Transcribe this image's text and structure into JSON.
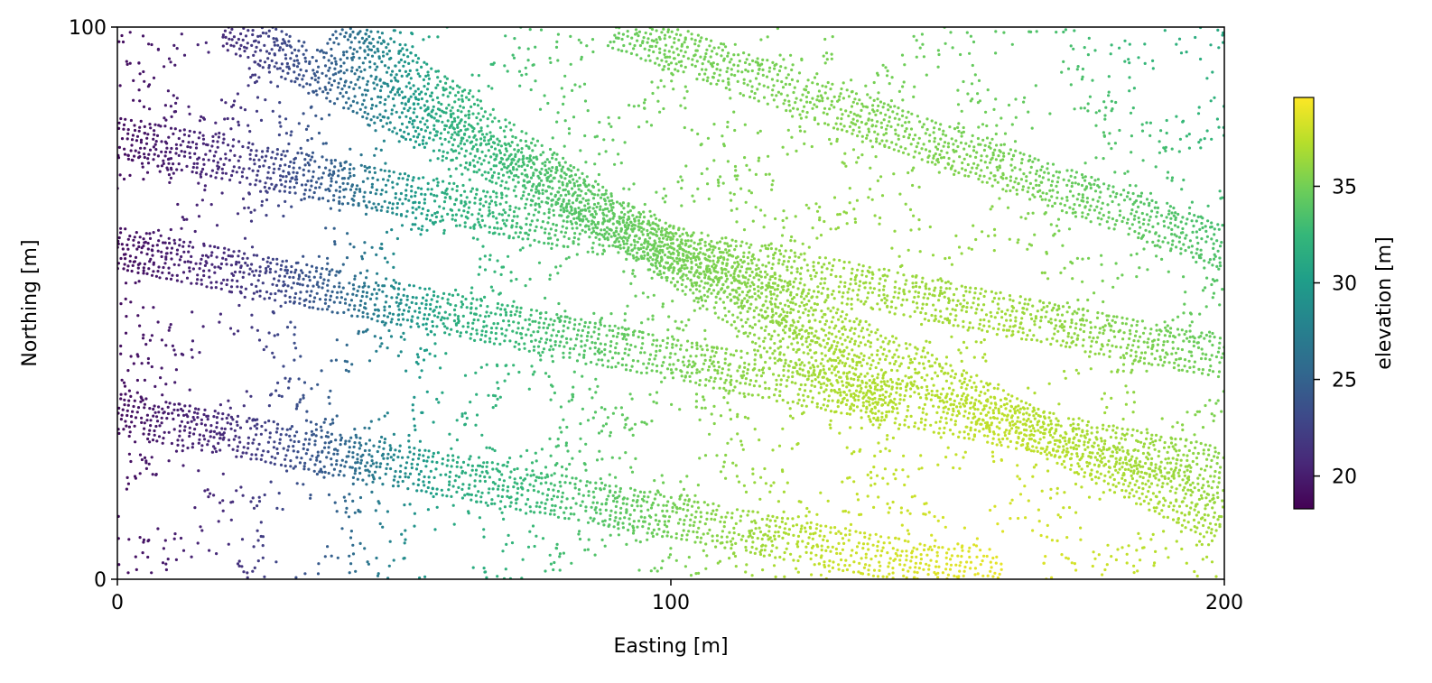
{
  "chart_data": {
    "type": "scatter",
    "title": "",
    "xlabel": "Easting [m]",
    "ylabel": "Northing [m]",
    "xlim": [
      0,
      200
    ],
    "ylim": [
      0,
      100
    ],
    "x_ticks": [
      0,
      100,
      200
    ],
    "y_ticks": [
      0,
      100
    ],
    "grid": false,
    "colormap": "viridis",
    "colormap_stops": [
      "#440154",
      "#482878",
      "#3e4989",
      "#31688e",
      "#26828e",
      "#1f9e89",
      "#35b779",
      "#6ece58",
      "#b5de2b",
      "#fde725"
    ],
    "colorbar": {
      "label": "elevation [m]",
      "range": [
        18.3,
        39.6
      ],
      "ticks": [
        20,
        25,
        30,
        35
      ],
      "placement": "right"
    },
    "series": [
      {
        "points_description_note": "",
        "streets": [
          {
            "from": [
              0,
              80
            ],
            "to": [
              200,
              40
            ]
          },
          {
            "from": [
              0,
              60
            ],
            "to": [
              200,
              20
            ]
          },
          {
            "from": [
              20,
              100
            ],
            "to": [
              200,
              10
            ]
          },
          {
            "from": [
              0,
              30
            ],
            "to": [
              160,
              0
            ]
          },
          {
            "from": [
              40,
              100
            ],
            "to": [
              140,
              30
            ]
          },
          {
            "from": [
              90,
              100
            ],
            "to": [
              200,
              60
            ]
          }
        ],
        "elevation_profile": {
          "x": [
            0,
            20,
            40,
            50,
            60,
            80,
            100,
            130,
            160,
            200
          ],
          "z_north": [
            19,
            21,
            25,
            29,
            32,
            34,
            35,
            35,
            34,
            31
          ],
          "z_south": [
            19,
            21,
            25,
            28,
            31,
            33,
            35,
            38,
            39,
            37
          ]
        }
      }
    ]
  }
}
